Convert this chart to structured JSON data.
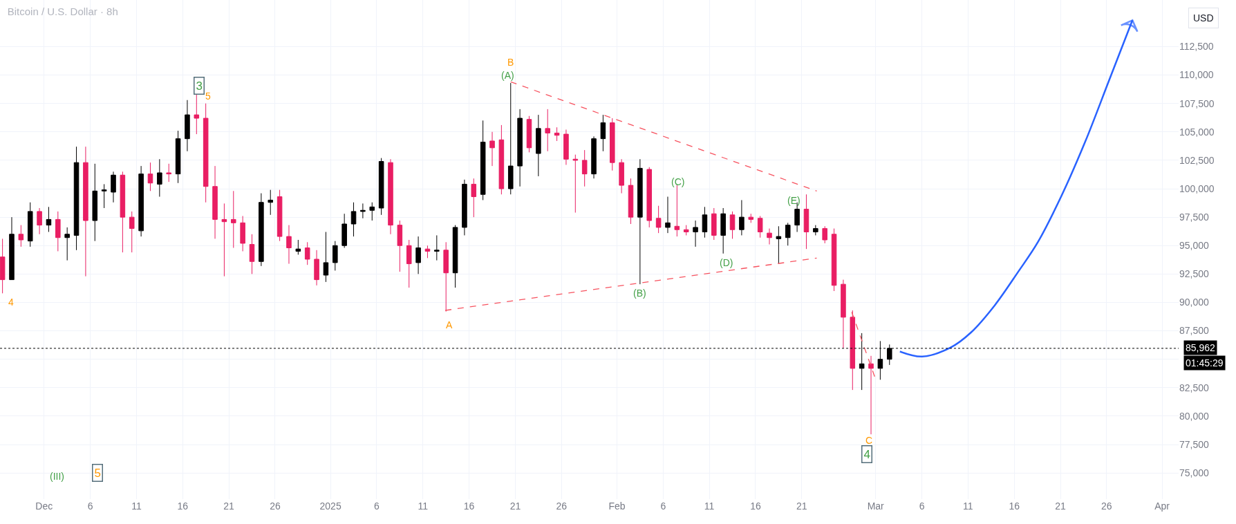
{
  "chart_data": {
    "type": "candlestick",
    "title": "Bitcoin / U.S. Dollar · 8h",
    "ylabel": "USD",
    "x": [
      "2024-11-26T12:00",
      "2024-11-27T12:00",
      "2024-11-28T12:00",
      "2024-11-29T12:00",
      "2024-11-30T12:00",
      "2024-12-01T12:00",
      "2024-12-02T12:00",
      "2024-12-03T12:00",
      "2024-12-04T12:00",
      "2024-12-05T12:00",
      "2024-12-06T12:00",
      "2024-12-07T12:00",
      "2024-12-08T12:00",
      "2024-12-09T12:00",
      "2024-12-10T12:00",
      "2024-12-11T12:00",
      "2024-12-12T12:00",
      "2024-12-13T12:00",
      "2024-12-14T12:00",
      "2024-12-15T12:00",
      "2024-12-16T12:00",
      "2024-12-17T12:00",
      "2024-12-18T12:00",
      "2024-12-19T12:00",
      "2024-12-20T12:00",
      "2024-12-21T12:00",
      "2024-12-22T12:00",
      "2024-12-23T12:00",
      "2024-12-24T12:00",
      "2024-12-25T12:00",
      "2024-12-26T12:00",
      "2024-12-27T12:00",
      "2024-12-28T12:00",
      "2024-12-29T12:00",
      "2024-12-30T12:00",
      "2024-12-31T12:00",
      "2025-01-01T12:00",
      "2025-01-02T12:00",
      "2025-01-03T12:00",
      "2025-01-04T12:00",
      "2025-01-05T12:00",
      "2025-01-06T12:00",
      "2025-01-07T12:00",
      "2025-01-08T12:00",
      "2025-01-09T12:00",
      "2025-01-10T12:00",
      "2025-01-11T12:00",
      "2025-01-12T12:00",
      "2025-01-13T12:00",
      "2025-01-14T12:00",
      "2025-01-15T12:00",
      "2025-01-16T12:00",
      "2025-01-17T12:00",
      "2025-01-18T12:00",
      "2025-01-19T12:00",
      "2025-01-20T12:00",
      "2025-01-21T12:00",
      "2025-01-22T12:00",
      "2025-01-23T12:00",
      "2025-01-24T12:00",
      "2025-01-25T12:00",
      "2025-01-26T12:00",
      "2025-01-27T12:00",
      "2025-01-28T12:00",
      "2025-01-29T12:00",
      "2025-01-30T12:00",
      "2025-01-31T12:00",
      "2025-02-01T12:00",
      "2025-02-02T12:00",
      "2025-02-03T12:00",
      "2025-02-04T12:00",
      "2025-02-05T12:00",
      "2025-02-06T12:00",
      "2025-02-07T12:00",
      "2025-02-08T12:00",
      "2025-02-09T12:00",
      "2025-02-10T12:00",
      "2025-02-11T12:00",
      "2025-02-12T12:00",
      "2025-02-13T12:00",
      "2025-02-14T12:00",
      "2025-02-15T12:00",
      "2025-02-16T12:00",
      "2025-02-17T12:00",
      "2025-02-18T12:00",
      "2025-02-19T12:00",
      "2025-02-20T12:00",
      "2025-02-21T12:00",
      "2025-02-22T12:00",
      "2025-02-23T12:00",
      "2025-02-24T12:00",
      "2025-02-25T12:00",
      "2025-02-26T12:00",
      "2025-02-27T12:00",
      "2025-02-28T12:00",
      "2025-03-01T12:00",
      "2025-03-02T12:00"
    ],
    "ohlc": [
      [
        94000,
        95600,
        90800,
        92000
      ],
      [
        92000,
        97500,
        92000,
        96000
      ],
      [
        96000,
        96800,
        94900,
        95500
      ],
      [
        95400,
        98800,
        94900,
        98000
      ],
      [
        98000,
        98300,
        96000,
        96800
      ],
      [
        96800,
        98400,
        96200,
        97300
      ],
      [
        97300,
        98000,
        94500,
        95700
      ],
      [
        95700,
        96600,
        93700,
        96000
      ],
      [
        95900,
        103700,
        94600,
        102300
      ],
      [
        102300,
        103700,
        92300,
        97200
      ],
      [
        97200,
        102200,
        95400,
        99800
      ],
      [
        99800,
        100400,
        98300,
        99900
      ],
      [
        99700,
        101500,
        98800,
        101200
      ],
      [
        101200,
        101500,
        94400,
        97500
      ],
      [
        97500,
        98000,
        94400,
        96500
      ],
      [
        96300,
        102000,
        95800,
        101300
      ],
      [
        101300,
        102300,
        99800,
        100500
      ],
      [
        100400,
        102600,
        99300,
        101400
      ],
      [
        101400,
        102200,
        100600,
        101300
      ],
      [
        101300,
        105100,
        100500,
        104400
      ],
      [
        104400,
        107800,
        103300,
        106500
      ],
      [
        106500,
        108300,
        104800,
        106200
      ],
      [
        106200,
        107500,
        98800,
        100200
      ],
      [
        100200,
        102000,
        95600,
        97300
      ],
      [
        97300,
        98700,
        92300,
        97100
      ],
      [
        97300,
        99800,
        94800,
        97000
      ],
      [
        97000,
        97600,
        94500,
        95200
      ],
      [
        95100,
        96000,
        92500,
        93600
      ],
      [
        93600,
        99600,
        93200,
        98800
      ],
      [
        98800,
        99900,
        97700,
        99000
      ],
      [
        99300,
        99900,
        95400,
        95800
      ],
      [
        95800,
        96800,
        93400,
        94800
      ],
      [
        94500,
        95500,
        94200,
        94700
      ],
      [
        94800,
        95300,
        93300,
        93800
      ],
      [
        93800,
        94600,
        91500,
        92000
      ],
      [
        92400,
        96200,
        91800,
        93500
      ],
      [
        93500,
        95400,
        92800,
        95000
      ],
      [
        95000,
        97800,
        94800,
        96900
      ],
      [
        96900,
        98800,
        95800,
        98000
      ],
      [
        98000,
        98700,
        97400,
        98100
      ],
      [
        98100,
        98800,
        97200,
        98400
      ],
      [
        98300,
        102700,
        97700,
        102400
      ],
      [
        102300,
        102600,
        96000,
        96800
      ],
      [
        96800,
        97200,
        92700,
        95000
      ],
      [
        95000,
        95500,
        91300,
        93400
      ],
      [
        93500,
        95800,
        92500,
        94800
      ],
      [
        94700,
        95000,
        93900,
        94500
      ],
      [
        94500,
        95900,
        93700,
        94600
      ],
      [
        94600,
        95300,
        89200,
        92600
      ],
      [
        92600,
        96800,
        91300,
        96600
      ],
      [
        96600,
        100800,
        95900,
        100400
      ],
      [
        100400,
        100900,
        97500,
        99300
      ],
      [
        99500,
        106000,
        99000,
        104100
      ],
      [
        104200,
        105000,
        102000,
        103600
      ],
      [
        104300,
        105600,
        99500,
        100000
      ],
      [
        100000,
        109300,
        99500,
        102000
      ],
      [
        102000,
        107000,
        100200,
        106200
      ],
      [
        106100,
        106400,
        103200,
        103600
      ],
      [
        103100,
        106500,
        101100,
        105300
      ],
      [
        105300,
        107000,
        103300,
        104900
      ],
      [
        104900,
        105400,
        104200,
        104700
      ],
      [
        104800,
        105200,
        102100,
        102600
      ],
      [
        102600,
        103000,
        97900,
        102500
      ],
      [
        102500,
        103400,
        100200,
        101300
      ],
      [
        101300,
        104600,
        100900,
        104400
      ],
      [
        104400,
        106500,
        103300,
        105800
      ],
      [
        105800,
        106200,
        101600,
        102300
      ],
      [
        102300,
        102600,
        99600,
        100300
      ],
      [
        100300,
        100900,
        96900,
        97500
      ],
      [
        97500,
        102600,
        91600,
        101800
      ],
      [
        101700,
        101900,
        96600,
        97200
      ],
      [
        97400,
        98500,
        96100,
        96600
      ],
      [
        96600,
        99300,
        96100,
        97000
      ],
      [
        96700,
        100300,
        95800,
        96400
      ],
      [
        96400,
        96800,
        95900,
        96200
      ],
      [
        96200,
        97200,
        94900,
        96600
      ],
      [
        96200,
        98400,
        95700,
        97700
      ],
      [
        97800,
        98300,
        95500,
        95900
      ],
      [
        95900,
        98300,
        94300,
        97800
      ],
      [
        97700,
        98000,
        95600,
        96400
      ],
      [
        96400,
        99000,
        95900,
        97500
      ],
      [
        97500,
        97800,
        97000,
        97300
      ],
      [
        97400,
        97600,
        95700,
        96200
      ],
      [
        96100,
        96500,
        95100,
        95700
      ],
      [
        95600,
        96700,
        93400,
        95800
      ],
      [
        95700,
        97000,
        95000,
        96800
      ],
      [
        96800,
        98800,
        96200,
        98200
      ],
      [
        98200,
        99500,
        94700,
        96200
      ],
      [
        96200,
        96800,
        95900,
        96500
      ],
      [
        96500,
        96700,
        95200,
        95500
      ],
      [
        96000,
        96500,
        91000,
        91500
      ],
      [
        91600,
        92000,
        86000,
        88700
      ],
      [
        88700,
        89300,
        82300,
        84200
      ],
      [
        84200,
        87300,
        82300,
        84600
      ],
      [
        84600,
        85300,
        78400,
        84200
      ],
      [
        84200,
        86600,
        83200,
        85000
      ],
      [
        85000,
        86300,
        84500,
        85962
      ]
    ],
    "colors": [
      "#e91e63",
      "#000000",
      "#e91e63",
      "#000000",
      "#e91e63",
      "#000000",
      "#e91e63",
      "#000000",
      "#000000",
      "#e91e63",
      "#000000",
      "#000000",
      "#000000",
      "#e91e63",
      "#e91e63",
      "#000000",
      "#e91e63",
      "#000000",
      "#e91e63",
      "#000000",
      "#000000",
      "#e91e63",
      "#e91e63",
      "#e91e63",
      "#e91e63",
      "#e91e63",
      "#e91e63",
      "#e91e63",
      "#000000",
      "#000000",
      "#e91e63",
      "#e91e63",
      "#000000",
      "#e91e63",
      "#e91e63",
      "#000000",
      "#000000",
      "#000000",
      "#000000",
      "#000000",
      "#000000",
      "#000000",
      "#e91e63",
      "#e91e63",
      "#e91e63",
      "#000000",
      "#e91e63",
      "#000000",
      "#e91e63",
      "#000000",
      "#000000",
      "#e91e63",
      "#000000",
      "#e91e63",
      "#e91e63",
      "#000000",
      "#000000",
      "#e91e63",
      "#000000",
      "#e91e63",
      "#e91e63",
      "#e91e63",
      "#e91e63",
      "#e91e63",
      "#000000",
      "#000000",
      "#e91e63",
      "#e91e63",
      "#e91e63",
      "#000000",
      "#e91e63",
      "#e91e63",
      "#000000",
      "#e91e63",
      "#e91e63",
      "#000000",
      "#000000",
      "#e91e63",
      "#000000",
      "#e91e63",
      "#000000",
      "#e91e63",
      "#e91e63",
      "#e91e63",
      "#000000",
      "#000000",
      "#000000",
      "#e91e63",
      "#000000",
      "#e91e63",
      "#e91e63",
      "#e91e63",
      "#e91e63",
      "#000000",
      "#e91e63",
      "#000000",
      "#000000"
    ],
    "series": [
      {
        "type": "line",
        "color": "#f7525f",
        "line_style": "dashed",
        "x": [
          "2025-01-20T12:00",
          "2025-02-22T15:00"
        ],
        "values": [
          109400,
          99800
        ]
      },
      {
        "type": "line",
        "color": "#f7525f",
        "line_style": "dashed",
        "x": [
          "2025-01-13T10:00",
          "2025-02-22T15:00"
        ],
        "values": [
          89300,
          93900
        ]
      },
      {
        "type": "line",
        "color": "#f7525f",
        "line_style": "dashed",
        "x": [
          "2025-02-26T10:00",
          "2025-03-01T00:00"
        ],
        "values": [
          89150,
          83230
        ]
      },
      {
        "type": "line",
        "color": "#2962ff",
        "line_style": "solid",
        "x": [
          "2025-03-03T15:00",
          "2025-03-06T01:00",
          "2025-03-09T03:00",
          "2025-03-11T08:00",
          "2025-03-13T21:00",
          "2025-03-16T10:00",
          "2025-03-18T14:00",
          "2025-03-21T04:00",
          "2025-03-23T17:00",
          "2025-03-26T06:00",
          "2025-03-28T19:00"
        ],
        "values": [
          85680,
          85240,
          86040,
          87370,
          89730,
          92680,
          95340,
          99470,
          104190,
          109500,
          114820
        ]
      }
    ],
    "ref_lines": [
      {
        "axis": "y",
        "value": 85962,
        "label": "85,962",
        "color": "#000000",
        "line_style": "dotted"
      }
    ],
    "annotations": [
      "3",
      "5",
      "4",
      "(III)",
      "5",
      "B",
      "(A)",
      "A",
      "(B)",
      "(C)",
      "(D)",
      "(E)",
      "C",
      "4",
      "01:45:29"
    ],
    "xlim": [
      "2024-11-26T05:30",
      "2025-04-02T19:00"
    ],
    "xticks": [
      {
        "value": "2024-12-01",
        "label": "Dec"
      },
      {
        "value": "2024-12-06",
        "label": "6"
      },
      {
        "value": "2024-12-11",
        "label": "11"
      },
      {
        "value": "2024-12-16",
        "label": "16"
      },
      {
        "value": "2024-12-21",
        "label": "21"
      },
      {
        "value": "2024-12-26",
        "label": "26"
      },
      {
        "value": "2025-01-01",
        "label": "2025"
      },
      {
        "value": "2025-01-06",
        "label": "6"
      },
      {
        "value": "2025-01-11",
        "label": "11"
      },
      {
        "value": "2025-01-16",
        "label": "16"
      },
      {
        "value": "2025-01-21",
        "label": "21"
      },
      {
        "value": "2025-01-26",
        "label": "26"
      },
      {
        "value": "2025-02-01",
        "label": "Feb"
      },
      {
        "value": "2025-02-06",
        "label": "6"
      },
      {
        "value": "2025-02-11",
        "label": "11"
      },
      {
        "value": "2025-02-16",
        "label": "16"
      },
      {
        "value": "2025-02-21",
        "label": "21"
      },
      {
        "value": "2025-03-01",
        "label": "Mar"
      },
      {
        "value": "2025-03-06",
        "label": "6"
      },
      {
        "value": "2025-03-11",
        "label": "11"
      },
      {
        "value": "2025-03-16",
        "label": "16"
      },
      {
        "value": "2025-03-21",
        "label": "21"
      },
      {
        "value": "2025-03-26",
        "label": "26"
      },
      {
        "value": "2025-04-01",
        "label": "Apr"
      }
    ],
    "ylim": [
      72700,
      116600
    ],
    "yticks": [
      {
        "value": 75000,
        "label": "75,000"
      },
      {
        "value": 77500,
        "label": "77,500"
      },
      {
        "value": 80000,
        "label": "80,000"
      },
      {
        "value": 82500,
        "label": "82,500"
      },
      {
        "value": 85000,
        "label": null
      },
      {
        "value": 87500,
        "label": "87,500"
      },
      {
        "value": 90000,
        "label": "90,000"
      },
      {
        "value": 92500,
        "label": "92,500"
      },
      {
        "value": 95000,
        "label": "95,000"
      },
      {
        "value": 97500,
        "label": "97,500"
      },
      {
        "value": 100000,
        "label": "100,000"
      },
      {
        "value": 102500,
        "label": "102,500"
      },
      {
        "value": 105000,
        "label": "105,000"
      },
      {
        "value": 107500,
        "label": "107,500"
      },
      {
        "value": 110000,
        "label": "110,000"
      },
      {
        "value": 112500,
        "label": "112,500"
      }
    ],
    "grid": true,
    "marker": "none"
  }
}
